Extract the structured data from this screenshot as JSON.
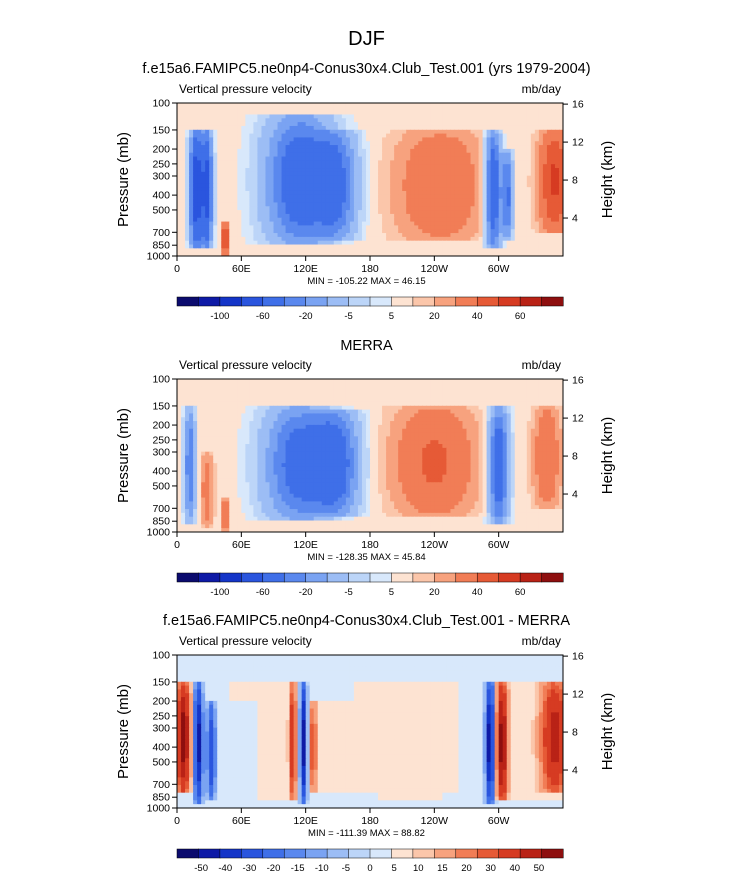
{
  "figure": {
    "title": "DJF"
  },
  "cmap": {
    "main": [
      "#0b0b6e",
      "#0e1aa6",
      "#1435c8",
      "#2a55de",
      "#3f6fe8",
      "#5a88ee",
      "#7aa3f2",
      "#9cbdf5",
      "#bcd5f8",
      "#d8e8fb",
      "#fde3d2",
      "#fbc6aa",
      "#f7a27e",
      "#f17d56",
      "#e65a36",
      "#d63b22",
      "#b92216",
      "#8e0f0f"
    ],
    "diff": [
      "#0b0b6e",
      "#0e1aa6",
      "#1435c8",
      "#2a55de",
      "#3f6fe8",
      "#5a88ee",
      "#7aa3f2",
      "#9cbdf5",
      "#bcd5f8",
      "#d8e8fb",
      "#fde3d2",
      "#fbc6aa",
      "#f7a27e",
      "#f17d56",
      "#e65a36",
      "#d63b22",
      "#b92216",
      "#8e0f0f"
    ]
  },
  "chart_data": [
    {
      "type": "heatmap",
      "title": "f.e15a6.FAMIPC5.ne0np4-Conus30x4.Club_Test.001 (yrs 1979-2004)",
      "left_label": "Vertical pressure velocity",
      "right_label": "mb/day",
      "ylabel": "Pressure (mb)",
      "ylabel_right": "Height (km)",
      "x_ticks": [
        "0",
        "60E",
        "120E",
        "180",
        "120W",
        "60W"
      ],
      "x_tick_values": [
        0,
        60,
        120,
        180,
        240,
        300
      ],
      "x_range": [
        0,
        360
      ],
      "y_ticks": [
        "100",
        "150",
        "200",
        "250",
        "300",
        "400",
        "500",
        "700",
        "850",
        "1000"
      ],
      "y_tick_values": [
        100,
        150,
        200,
        250,
        300,
        400,
        500,
        700,
        850,
        1000
      ],
      "y_range": [
        1000,
        100
      ],
      "height_ticks": [
        "4",
        "8",
        "12",
        "16"
      ],
      "height_tick_values": [
        4,
        8,
        12,
        16
      ],
      "stats": "MIN = -105.22  MAX =  46.15",
      "min": -105.22,
      "max": 46.15,
      "colorbar_labels": [
        "-100",
        "-60",
        "-20",
        "-5",
        "5",
        "20",
        "40",
        "60"
      ],
      "colorbar_levels": [
        -120,
        -100,
        -80,
        -60,
        -40,
        -30,
        -20,
        -10,
        -5,
        -2,
        2,
        5,
        10,
        20,
        30,
        40,
        50,
        60
      ],
      "features": [
        {
          "lon": 18,
          "w": 6,
          "a": -75,
          "lo": 150,
          "hi": 900
        },
        {
          "lon": 28,
          "w": 5,
          "a": -65,
          "lo": 150,
          "hi": 900
        },
        {
          "lon": 45,
          "w": 3,
          "a": 35,
          "lo": 600,
          "hi": 1000
        },
        {
          "lon": 115,
          "w": 32,
          "a": -55,
          "lo": 120,
          "hi": 850
        },
        {
          "lon": 150,
          "w": 18,
          "a": -35,
          "lo": 150,
          "hi": 800
        },
        {
          "lon": 245,
          "w": 40,
          "a": 20,
          "lo": 150,
          "hi": 800
        },
        {
          "lon": 295,
          "w": 7,
          "a": -60,
          "lo": 150,
          "hi": 900
        },
        {
          "lon": 308,
          "w": 5,
          "a": -45,
          "lo": 200,
          "hi": 800
        },
        {
          "lon": 352,
          "w": 14,
          "a": 32,
          "lo": 150,
          "hi": 700
        }
      ]
    },
    {
      "type": "heatmap",
      "title": "MERRA",
      "left_label": "Vertical pressure velocity",
      "right_label": "mb/day",
      "ylabel": "Pressure (mb)",
      "ylabel_right": "Height (km)",
      "x_ticks": [
        "0",
        "60E",
        "120E",
        "180",
        "120W",
        "60W"
      ],
      "x_tick_values": [
        0,
        60,
        120,
        180,
        240,
        300
      ],
      "x_range": [
        0,
        360
      ],
      "y_ticks": [
        "100",
        "150",
        "200",
        "250",
        "300",
        "400",
        "500",
        "700",
        "850",
        "1000"
      ],
      "y_tick_values": [
        100,
        150,
        200,
        250,
        300,
        400,
        500,
        700,
        850,
        1000
      ],
      "y_range": [
        1000,
        100
      ],
      "height_ticks": [
        "4",
        "8",
        "12",
        "16"
      ],
      "height_tick_values": [
        4,
        8,
        12,
        16
      ],
      "stats": "MIN = -128.35  MAX =  45.84",
      "min": -128.35,
      "max": 45.84,
      "colorbar_labels": [
        "-100",
        "-60",
        "-20",
        "-5",
        "5",
        "20",
        "40",
        "60"
      ],
      "colorbar_levels": [
        -120,
        -100,
        -80,
        -60,
        -40,
        -30,
        -20,
        -10,
        -5,
        -2,
        2,
        5,
        10,
        20,
        30,
        40,
        50,
        60
      ],
      "features": [
        {
          "lon": 12,
          "w": 5,
          "a": -40,
          "lo": 150,
          "hi": 900
        },
        {
          "lon": 28,
          "w": 6,
          "a": 15,
          "lo": 300,
          "hi": 950
        },
        {
          "lon": 45,
          "w": 3,
          "a": 25,
          "lo": 600,
          "hi": 1000
        },
        {
          "lon": 115,
          "w": 33,
          "a": -50,
          "lo": 150,
          "hi": 850
        },
        {
          "lon": 150,
          "w": 20,
          "a": -40,
          "lo": 160,
          "hi": 800
        },
        {
          "lon": 240,
          "w": 38,
          "a": 22,
          "lo": 150,
          "hi": 800
        },
        {
          "lon": 300,
          "w": 9,
          "a": -55,
          "lo": 150,
          "hi": 900
        },
        {
          "lon": 345,
          "w": 12,
          "a": 20,
          "lo": 150,
          "hi": 700
        }
      ]
    },
    {
      "type": "heatmap",
      "title": "f.e15a6.FAMIPC5.ne0np4-Conus30x4.Club_Test.001 - MERRA",
      "left_label": "Vertical pressure velocity",
      "right_label": "mb/day",
      "ylabel": "Pressure (mb)",
      "ylabel_right": "Height (km)",
      "x_ticks": [
        "0",
        "60E",
        "120E",
        "180",
        "120W",
        "60W"
      ],
      "x_tick_values": [
        0,
        60,
        120,
        180,
        240,
        300
      ],
      "x_range": [
        0,
        360
      ],
      "y_ticks": [
        "100",
        "150",
        "200",
        "250",
        "300",
        "400",
        "500",
        "700",
        "850",
        "1000"
      ],
      "y_tick_values": [
        100,
        150,
        200,
        250,
        300,
        400,
        500,
        700,
        850,
        1000
      ],
      "y_range": [
        1000,
        100
      ],
      "height_ticks": [
        "4",
        "8",
        "12",
        "16"
      ],
      "height_tick_values": [
        4,
        8,
        12,
        16
      ],
      "stats": "MIN = -111.39  MAX =  88.82",
      "min": -111.39,
      "max": 88.82,
      "colorbar_labels": [
        "-50",
        "-40",
        "-30",
        "-20",
        "-15",
        "-10",
        "-5",
        "0",
        "5",
        "10",
        "15",
        "20",
        "30",
        "40",
        "50"
      ],
      "colorbar_levels": [
        -60,
        -50,
        -40,
        -30,
        -20,
        -15,
        -10,
        -5,
        -2,
        0,
        2,
        5,
        10,
        15,
        20,
        30,
        40,
        50
      ],
      "features": [
        {
          "lon": 6,
          "w": 6,
          "a": 45,
          "lo": 150,
          "hi": 800
        },
        {
          "lon": 20,
          "w": 4,
          "a": -55,
          "lo": 150,
          "hi": 950
        },
        {
          "lon": 32,
          "w": 4,
          "a": -40,
          "lo": 200,
          "hi": 900
        },
        {
          "lon": 108,
          "w": 3,
          "a": 30,
          "lo": 150,
          "hi": 900
        },
        {
          "lon": 118,
          "w": 3,
          "a": -55,
          "lo": 150,
          "hi": 950
        },
        {
          "lon": 127,
          "w": 3,
          "a": 22,
          "lo": 200,
          "hi": 800
        },
        {
          "lon": 292,
          "w": 4,
          "a": -60,
          "lo": 150,
          "hi": 950
        },
        {
          "lon": 303,
          "w": 5,
          "a": 45,
          "lo": 150,
          "hi": 900
        },
        {
          "lon": 352,
          "w": 12,
          "a": 35,
          "lo": 150,
          "hi": 800
        }
      ]
    }
  ]
}
